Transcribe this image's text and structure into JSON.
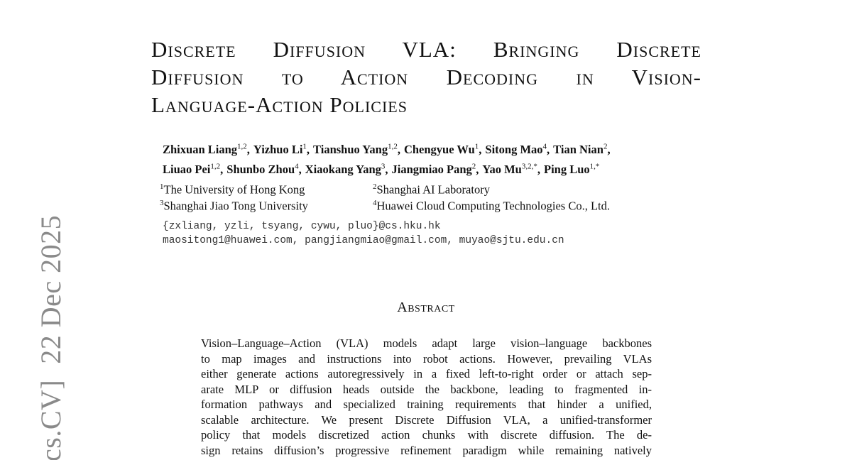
{
  "arxiv_stamp": {
    "category": "cs.CV]",
    "date": "22 Dec 2025"
  },
  "title": {
    "lines": [
      "Discrete Diffusion VLA: Bringing Discrete",
      "Diffusion to Action Decoding in Vision-",
      "Language-Action Policies"
    ]
  },
  "authors": [
    [
      {
        "name": "Zhixuan Liang",
        "sup": "1,2"
      },
      {
        "name": "Yizhuo Li",
        "sup": "1"
      },
      {
        "name": "Tianshuo Yang",
        "sup": "1,2"
      },
      {
        "name": "Chengyue Wu",
        "sup": "1"
      },
      {
        "name": "Sitong Mao",
        "sup": "4"
      },
      {
        "name": "Tian Nian",
        "sup": "2"
      }
    ],
    [
      {
        "name": "Liuao Pei",
        "sup": "1,2"
      },
      {
        "name": "Shunbo Zhou",
        "sup": "4"
      },
      {
        "name": "Xiaokang Yang",
        "sup": "3"
      },
      {
        "name": "Jiangmiao Pang",
        "sup": "2"
      },
      {
        "name": "Yao Mu",
        "sup": "3,2,*"
      },
      {
        "name": "Ping Luo",
        "sup": "1,*"
      }
    ]
  ],
  "affiliations": [
    {
      "sup": "1",
      "text": "The University of Hong Kong"
    },
    {
      "sup": "2",
      "text": "Shanghai AI Laboratory"
    },
    {
      "sup": "3",
      "text": "Shanghai Jiao Tong University"
    },
    {
      "sup": "4",
      "text": "Huawei Cloud Computing Technologies Co., Ltd."
    }
  ],
  "emails": [
    "{zxliang, yzli, tsyang, cywu, pluo}@cs.hku.hk",
    "maositong1@huawei.com, pangjiangmiao@gmail.com, muyao@sjtu.edu.cn"
  ],
  "abstract": {
    "heading": "Abstract",
    "lines": [
      "Vision–Language–Action (VLA) models adapt large vision–language backbones",
      "to map images and instructions into robot actions.  However, prevailing VLAs",
      "either generate actions autoregressively in a fixed left-to-right order or attach sep-",
      "arate MLP or diffusion heads outside the backbone, leading to fragmented in-",
      "formation pathways and specialized training requirements that hinder a unified,",
      "scalable architecture. We present Discrete Diffusion VLA, a unified-transformer",
      "policy that models discretized action chunks with discrete diffusion.  The de-",
      "sign retains diffusion’s progressive refinement paradigm while remaining natively"
    ]
  }
}
